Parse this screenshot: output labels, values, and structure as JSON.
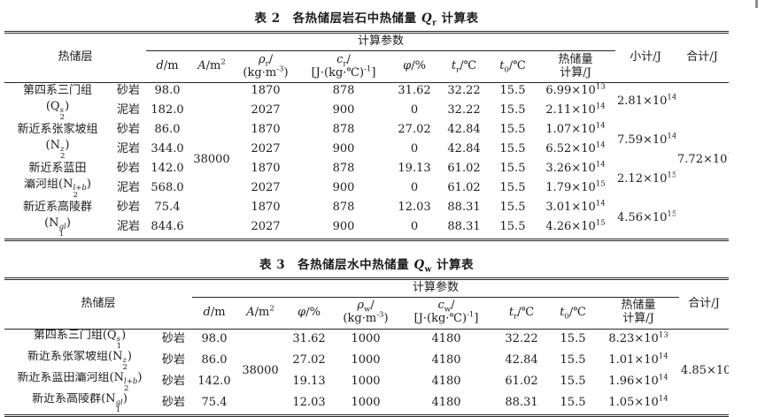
{
  "table2": {
    "title": "表 2　各热储层岩石中热储量 *Q*_{r} 计算表",
    "headers": {
      "reservoir": "热储层",
      "params_group": "计算参数",
      "d": "*d*/m",
      "A": "*A*/m^{2}",
      "rho": "*ρ*_{r}/\n(kg·m^{-3})",
      "c": "*c*_{r}/\n[J·(kg·℃)^{-1}]",
      "phi": "*φ*/%",
      "tr": "*t*_{r}/℃",
      "t0": "*t*_{0}/℃",
      "q": "热储量\n计算/J",
      "subtotal": "小计/J",
      "total": "合计/J"
    },
    "A_value": "38000",
    "total_value": "7.72×10^{15}",
    "rows": [
      {
        "formation": "第四系三门组",
        "lithology": "砂岩",
        "d": "98.0",
        "rho": "1870",
        "c": "878",
        "phi": "31.62",
        "tr": "32.22",
        "t0": "15.5",
        "q": "6.99×10^{13}",
        "subtotal": "2.81×10^{14}"
      },
      {
        "formation": "(Q~{s,2})",
        "lithology": "泥岩",
        "d": "182.0",
        "rho": "2027",
        "c": "900",
        "phi": "0",
        "tr": "32.22",
        "t0": "15.5",
        "q": "2.11×10^{14}"
      },
      {
        "formation": "新近系张家坡组",
        "lithology": "砂岩",
        "d": "86.0",
        "rho": "1870",
        "c": "878",
        "phi": "27.02",
        "tr": "42.84",
        "t0": "15.5",
        "q": "1.07×10^{14}",
        "subtotal": "7.59×10^{14}"
      },
      {
        "formation": "(N~{z,2})",
        "lithology": "泥岩",
        "d": "344.0",
        "rho": "2027",
        "c": "900",
        "phi": "0",
        "tr": "42.84",
        "t0": "15.5",
        "q": "6.52×10^{14}"
      },
      {
        "formation": "新近系蓝田",
        "lithology": "砂岩",
        "d": "142.0",
        "rho": "1870",
        "c": "878",
        "phi": "19.13",
        "tr": "61.02",
        "t0": "15.5",
        "q": "3.26×10^{14}",
        "subtotal": "2.12×10^{15}"
      },
      {
        "formation": "灞河组(N~{l+b,2})",
        "lithology": "泥岩",
        "d": "568.0",
        "rho": "2027",
        "c": "900",
        "phi": "0",
        "tr": "61.02",
        "t0": "15.5",
        "q": "1.79×10^{15}"
      },
      {
        "formation": "新近系高陵群",
        "lithology": "砂岩",
        "d": "75.4",
        "rho": "1870",
        "c": "878",
        "phi": "12.03",
        "tr": "88.31",
        "t0": "15.5",
        "q": "3.01×10^{14}",
        "subtotal": "4.56×10^{15}"
      },
      {
        "formation": "(N~{gl,1})",
        "lithology": "泥岩",
        "d": "844.6",
        "rho": "2027",
        "c": "900",
        "phi": "0",
        "tr": "88.31",
        "t0": "15.5",
        "q": "4.26×10^{15}"
      }
    ]
  },
  "table3": {
    "title": "表 3　各热储层水中热储量 *Q*_{w} 计算表",
    "headers": {
      "reservoir": "热储层",
      "params_group": "计算参数",
      "d": "*d*/m",
      "A": "*A*/m^{2}",
      "phi": "*φ*/%",
      "rho": "*ρ*_{w}/\n(kg·m^{-3})",
      "c": "*c*_{w}/\n[J·(kg·℃)^{-1}]",
      "tr": "*t*_{r}/℃",
      "t0": "*t*_{0}/℃",
      "q": "热储量\n计算/J",
      "total": "合计/J"
    },
    "A_value": "38000",
    "total_value": "4.85×10^{14}",
    "rows": [
      {
        "formation": "第四系三门组(Q~{s,1})",
        "lithology": "砂岩",
        "d": "98.0",
        "phi": "31.62",
        "rho": "1000",
        "c": "4180",
        "tr": "32.22",
        "t0": "15.5",
        "q": "8.23×10^{13}"
      },
      {
        "formation": "新近系张家坡组(N~{z,2})",
        "lithology": "砂岩",
        "d": "86.0",
        "phi": "27.02",
        "rho": "1000",
        "c": "4180",
        "tr": "42.84",
        "t0": "15.5",
        "q": "1.01×10^{14}"
      },
      {
        "formation": "新近系蓝田灞河组(N~{l+b,2})",
        "lithology": "砂岩",
        "d": "142.0",
        "phi": "19.13",
        "rho": "1000",
        "c": "4180",
        "tr": "61.02",
        "t0": "15.5",
        "q": "1.96×10^{14}"
      },
      {
        "formation": "新近系高陵群(N~{gl,1})",
        "lithology": "砂岩",
        "d": "75.4",
        "phi": "12.03",
        "rho": "1000",
        "c": "4180",
        "tr": "88.31",
        "t0": "15.5",
        "q": "1.05×10^{14}"
      }
    ]
  }
}
